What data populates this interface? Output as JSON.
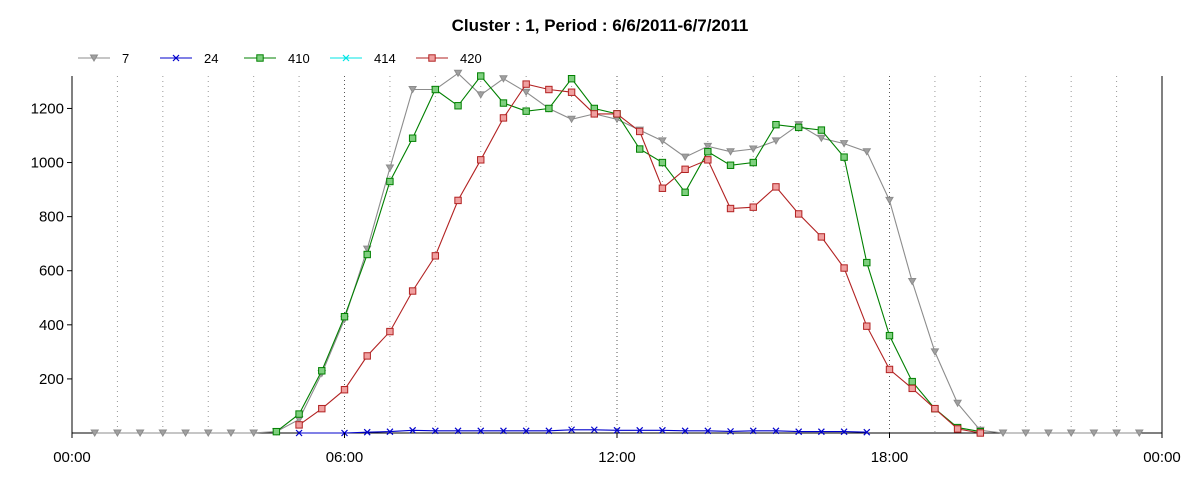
{
  "chart_data": {
    "type": "line",
    "title": "Cluster : 1, Period : 6/6/2011-6/7/2011",
    "xlabel": "",
    "ylabel": "",
    "x_range_hours": [
      0,
      24
    ],
    "x_tick_labels": [
      "00:00",
      "06:00",
      "12:00",
      "18:00",
      "00:00"
    ],
    "ylim": [
      0,
      1320
    ],
    "y_ticks": [
      200,
      400,
      600,
      800,
      1000,
      1200
    ],
    "grid": "dotted vertical lines every hour, stronger at 6-hour marks",
    "legend_position": "top-left",
    "series": [
      {
        "name": "7",
        "color": "#8c8c8c",
        "marker": "triangle-down",
        "points": [
          [
            0.5,
            0
          ],
          [
            1,
            0
          ],
          [
            1.5,
            0
          ],
          [
            2,
            0
          ],
          [
            2.5,
            0
          ],
          [
            3,
            0
          ],
          [
            3.5,
            0
          ],
          [
            4,
            0
          ],
          [
            4.5,
            5
          ],
          [
            5,
            50
          ],
          [
            5.5,
            220
          ],
          [
            6,
            420
          ],
          [
            6.5,
            680
          ],
          [
            7,
            980
          ],
          [
            7.5,
            1270
          ],
          [
            8,
            1270
          ],
          [
            8.5,
            1330
          ],
          [
            9,
            1250
          ],
          [
            9.5,
            1310
          ],
          [
            10,
            1260
          ],
          [
            10.5,
            1200
          ],
          [
            11,
            1160
          ],
          [
            11.5,
            1180
          ],
          [
            12,
            1160
          ],
          [
            12.5,
            1120
          ],
          [
            13,
            1080
          ],
          [
            13.5,
            1020
          ],
          [
            14,
            1060
          ],
          [
            14.5,
            1040
          ],
          [
            15,
            1050
          ],
          [
            15.5,
            1080
          ],
          [
            16,
            1140
          ],
          [
            16.5,
            1090
          ],
          [
            17,
            1070
          ],
          [
            17.5,
            1040
          ],
          [
            18,
            860
          ],
          [
            18.5,
            560
          ],
          [
            19,
            300
          ],
          [
            19.5,
            110
          ],
          [
            20,
            10
          ],
          [
            20.5,
            0
          ],
          [
            21,
            0
          ],
          [
            21.5,
            0
          ],
          [
            22,
            0
          ],
          [
            22.5,
            0
          ],
          [
            23,
            0
          ],
          [
            23.5,
            0
          ]
        ]
      },
      {
        "name": "24",
        "color": "#0000cc",
        "marker": "x",
        "points": [
          [
            5,
            0
          ],
          [
            6,
            0
          ],
          [
            6.5,
            3
          ],
          [
            7,
            5
          ],
          [
            7.5,
            10
          ],
          [
            8,
            8
          ],
          [
            8.5,
            8
          ],
          [
            9,
            8
          ],
          [
            9.5,
            8
          ],
          [
            10,
            8
          ],
          [
            10.5,
            8
          ],
          [
            11,
            12
          ],
          [
            11.5,
            12
          ],
          [
            12,
            10
          ],
          [
            12.5,
            10
          ],
          [
            13,
            10
          ],
          [
            13.5,
            8
          ],
          [
            14,
            8
          ],
          [
            14.5,
            6
          ],
          [
            15,
            8
          ],
          [
            15.5,
            8
          ],
          [
            16,
            5
          ],
          [
            16.5,
            5
          ],
          [
            17,
            5
          ],
          [
            17.5,
            3
          ]
        ]
      },
      {
        "name": "410",
        "color": "#008000",
        "marker": "square",
        "points": [
          [
            4.5,
            5
          ],
          [
            5,
            70
          ],
          [
            5.5,
            230
          ],
          [
            6,
            430
          ],
          [
            6.5,
            660
          ],
          [
            7,
            930
          ],
          [
            7.5,
            1090
          ],
          [
            8,
            1270
          ],
          [
            8.5,
            1210
          ],
          [
            9,
            1320
          ],
          [
            9.5,
            1220
          ],
          [
            10,
            1190
          ],
          [
            10.5,
            1200
          ],
          [
            11,
            1310
          ],
          [
            11.5,
            1200
          ],
          [
            12,
            1180
          ],
          [
            12.5,
            1050
          ],
          [
            13,
            1000
          ],
          [
            13.5,
            890
          ],
          [
            14,
            1040
          ],
          [
            14.5,
            990
          ],
          [
            15,
            1000
          ],
          [
            15.5,
            1140
          ],
          [
            16,
            1130
          ],
          [
            16.5,
            1120
          ],
          [
            17,
            1020
          ],
          [
            17.5,
            630
          ],
          [
            18,
            360
          ],
          [
            18.5,
            190
          ],
          [
            19,
            90
          ],
          [
            19.5,
            20
          ],
          [
            20,
            5
          ]
        ]
      },
      {
        "name": "414",
        "color": "#00e5e5",
        "marker": "x",
        "points": []
      },
      {
        "name": "420",
        "color": "#b22222",
        "marker": "square",
        "points": [
          [
            5,
            30
          ],
          [
            5.5,
            90
          ],
          [
            6,
            160
          ],
          [
            6.5,
            285
          ],
          [
            7,
            375
          ],
          [
            7.5,
            525
          ],
          [
            8,
            655
          ],
          [
            8.5,
            860
          ],
          [
            9,
            1010
          ],
          [
            9.5,
            1165
          ],
          [
            10,
            1290
          ],
          [
            10.5,
            1270
          ],
          [
            11,
            1260
          ],
          [
            11.5,
            1180
          ],
          [
            12,
            1180
          ],
          [
            12.5,
            1115
          ],
          [
            13,
            905
          ],
          [
            13.5,
            975
          ],
          [
            14,
            1010
          ],
          [
            14.5,
            830
          ],
          [
            15,
            835
          ],
          [
            15.5,
            910
          ],
          [
            16,
            810
          ],
          [
            16.5,
            725
          ],
          [
            17,
            610
          ],
          [
            17.5,
            395
          ],
          [
            18,
            235
          ],
          [
            18.5,
            165
          ],
          [
            19,
            90
          ],
          [
            19.5,
            15
          ],
          [
            20,
            0
          ]
        ]
      }
    ]
  }
}
